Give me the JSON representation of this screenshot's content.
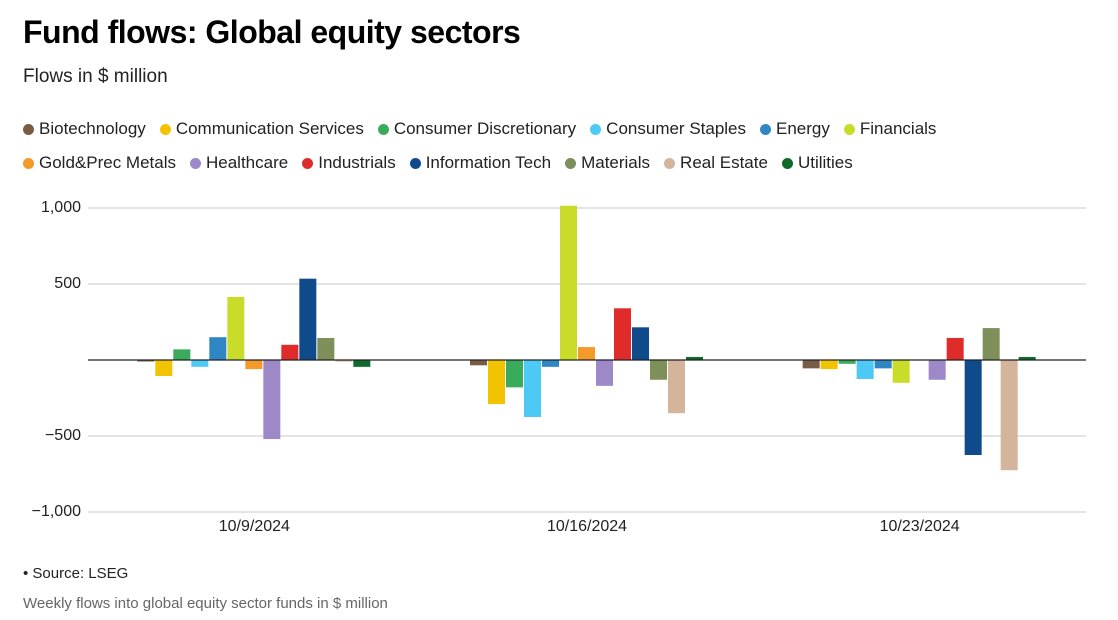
{
  "chart_data": {
    "type": "bar",
    "title": "Fund flows: Global equity sectors",
    "subtitle": "Flows in $ million",
    "categories": [
      "10/9/2024",
      "10/16/2024",
      "10/23/2024"
    ],
    "series": [
      {
        "name": "Biotechnology",
        "color": "#7a5c44",
        "values": [
          -10,
          -35,
          -55
        ]
      },
      {
        "name": "Communication Services",
        "color": "#f2c300",
        "values": [
          -105,
          -290,
          -60
        ]
      },
      {
        "name": "Consumer Discretionary",
        "color": "#3aaa5c",
        "values": [
          70,
          -180,
          -25
        ]
      },
      {
        "name": "Consumer Staples",
        "color": "#4dc9f6",
        "values": [
          -45,
          -375,
          -125
        ]
      },
      {
        "name": "Energy",
        "color": "#2f86c4",
        "values": [
          150,
          -45,
          -55
        ]
      },
      {
        "name": "Financials",
        "color": "#c9dc2a",
        "values": [
          415,
          1015,
          -150
        ]
      },
      {
        "name": "Gold&Prec Metals",
        "color": "#f39a2a",
        "values": [
          -60,
          85,
          0
        ]
      },
      {
        "name": "Healthcare",
        "color": "#9d88c8",
        "values": [
          -520,
          -170,
          -130
        ]
      },
      {
        "name": "Industrials",
        "color": "#e02b2b",
        "values": [
          100,
          340,
          145
        ]
      },
      {
        "name": "Information Tech",
        "color": "#0f4b8a",
        "values": [
          535,
          215,
          -625
        ]
      },
      {
        "name": "Materials",
        "color": "#7f8f5a",
        "values": [
          145,
          -130,
          210
        ]
      },
      {
        "name": "Real Estate",
        "color": "#d4b49a",
        "values": [
          -10,
          -350,
          -725
        ]
      },
      {
        "name": "Utilities",
        "color": "#0f6b2c",
        "values": [
          -45,
          20,
          20
        ]
      }
    ],
    "ylim": [
      -1000,
      1000
    ],
    "yticks": [
      {
        "value": -1000,
        "label": "−1,000"
      },
      {
        "value": -500,
        "label": "−500"
      },
      500,
      {
        "value": 1000,
        "label": "1,000"
      }
    ],
    "grid": true,
    "source": "• Source: LSEG",
    "caption": "Weekly flows into global equity sector funds in $ million"
  }
}
